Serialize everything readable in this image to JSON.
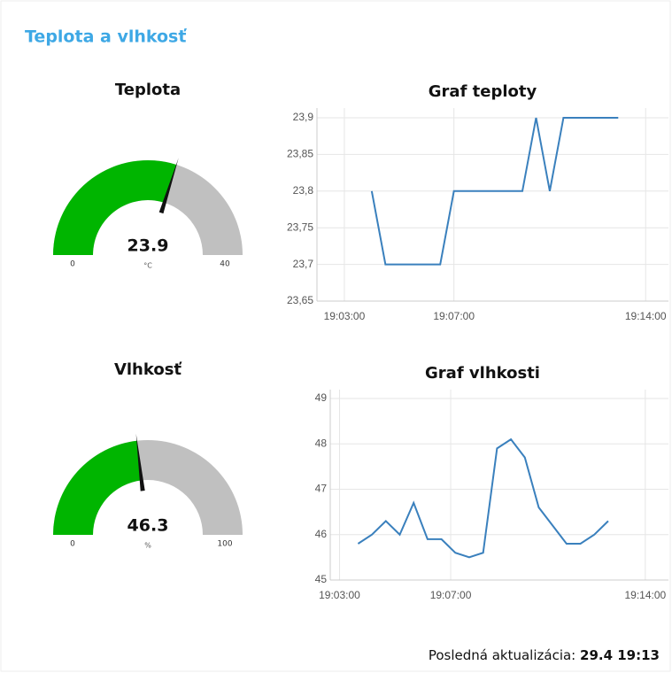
{
  "header": {
    "title": "Teplota a vlhkosť"
  },
  "gauges": [
    {
      "title": "Teplota",
      "value": 23.9,
      "unit": "°C",
      "min": 0,
      "max": 40,
      "color": "#00b500"
    },
    {
      "title": "Vlhkosť",
      "value": 46.3,
      "unit": "%",
      "min": 0,
      "max": 100,
      "color": "#00b500"
    }
  ],
  "charts": [
    {
      "type": "line",
      "title": "Graf teploty",
      "color": "#3a80bd",
      "grid": true,
      "x": [
        "19:04:00",
        "19:04:30",
        "19:06:30",
        "19:07:00",
        "19:09:30",
        "19:10:00",
        "19:10:30",
        "19:11:00",
        "19:13:00"
      ],
      "values": [
        23.8,
        23.7,
        23.7,
        23.8,
        23.8,
        23.9,
        23.8,
        23.9,
        23.9
      ],
      "xlim": [
        "19:02:00",
        "19:14:50"
      ],
      "xticks": [
        "19:03:00",
        "19:07:00",
        "19:14:00"
      ],
      "ylim": [
        23.65,
        23.9
      ],
      "yticks": [
        {
          "value": 23.65,
          "label": "23,65"
        },
        {
          "value": 23.7,
          "label": "23,7"
        },
        {
          "value": 23.75,
          "label": "23,75"
        },
        {
          "value": 23.8,
          "label": "23,8"
        },
        {
          "value": 23.85,
          "label": "23,85"
        },
        {
          "value": 23.9,
          "label": "23,9"
        }
      ]
    },
    {
      "type": "line",
      "title": "Graf vlhkosti",
      "color": "#3a80bd",
      "grid": true,
      "x": [
        "19:03:40",
        "19:04:10",
        "19:04:40",
        "19:05:10",
        "19:05:40",
        "19:06:10",
        "19:06:40",
        "19:07:10",
        "19:07:40",
        "19:08:10",
        "19:08:40",
        "19:09:10",
        "19:09:40",
        "19:10:10",
        "19:10:40",
        "19:11:10",
        "19:11:40",
        "19:12:10",
        "19:12:40"
      ],
      "values": [
        45.8,
        46.0,
        46.3,
        46.0,
        46.7,
        45.9,
        45.9,
        45.6,
        45.5,
        45.6,
        47.9,
        48.1,
        47.7,
        46.6,
        46.2,
        45.8,
        45.8,
        46.0,
        46.3
      ],
      "xlim": [
        "19:02:40",
        "19:14:50"
      ],
      "xticks": [
        "19:03:00",
        "19:07:00",
        "19:14:00"
      ],
      "ylim": [
        45,
        49
      ],
      "yticks": [
        45,
        46,
        47,
        48,
        49
      ]
    }
  ],
  "footer": {
    "label": "Posledná aktualizácia:",
    "value": "29.4 19:13"
  }
}
